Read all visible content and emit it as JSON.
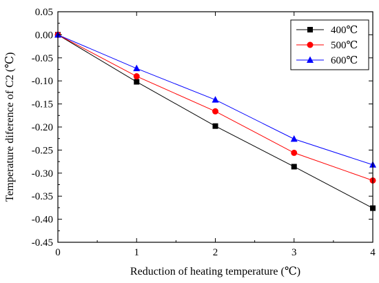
{
  "chart_data": {
    "type": "line",
    "xlabel": "Reduction of heating temperature (℃)",
    "ylabel": "Temperature diference of C2 (℃)",
    "x": [
      0,
      1,
      2,
      3,
      4
    ],
    "xlim": [
      0,
      4
    ],
    "ylim": [
      -0.45,
      0.05
    ],
    "xticks": [
      0,
      1,
      2,
      3,
      4
    ],
    "xtick_labels": [
      "0",
      "1",
      "2",
      "3",
      "4"
    ],
    "yticks": [
      0.05,
      0.0,
      -0.05,
      -0.1,
      -0.15,
      -0.2,
      -0.25,
      -0.3,
      -0.35,
      -0.4,
      -0.45
    ],
    "ytick_labels": [
      "0.05",
      "0.00",
      "-0.05",
      "-0.10",
      "-0.15",
      "-0.20",
      "-0.25",
      "-0.30",
      "-0.35",
      "-0.40",
      "-0.45"
    ],
    "grid": false,
    "legend_position": "top-right",
    "series": [
      {
        "name": "400℃",
        "color": "#000000",
        "marker": "square",
        "values": [
          0.0,
          -0.102,
          -0.198,
          -0.286,
          -0.376
        ]
      },
      {
        "name": "500℃",
        "color": "#ff0000",
        "marker": "circle",
        "values": [
          0.0,
          -0.09,
          -0.166,
          -0.256,
          -0.316
        ]
      },
      {
        "name": "600℃",
        "color": "#0000ff",
        "marker": "triangle",
        "values": [
          0.0,
          -0.073,
          -0.141,
          -0.226,
          -0.282
        ]
      }
    ]
  }
}
